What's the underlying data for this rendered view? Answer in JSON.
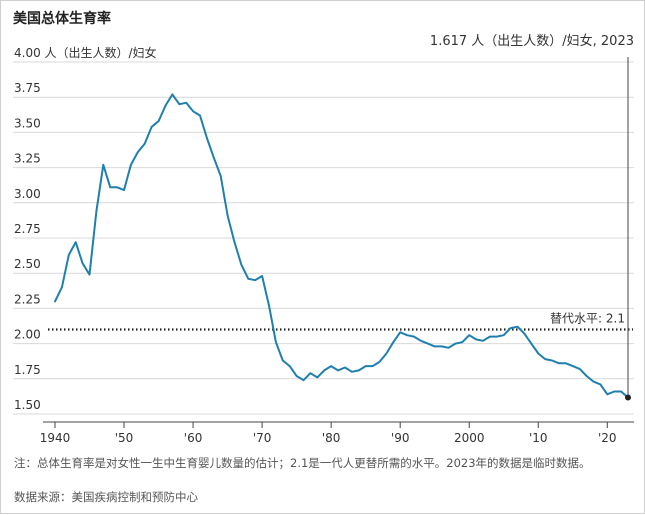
{
  "title": "美国总体生育率",
  "note": "注：总体生育率是对女性一生中生育婴儿数量的估计；2.1是一代人更替所需的水平。2023年的数据是临时数据。",
  "source": "数据来源：美国疾病控制和预防中心",
  "colors": {
    "line": "#1f7fae",
    "text": "#333333",
    "axis": "#444444",
    "grid": "#d9d9d9"
  },
  "chart_data": {
    "type": "line",
    "xlim": [
      1940,
      2023
    ],
    "ylim": [
      1.5,
      4.0
    ],
    "yticks": [
      1.5,
      1.75,
      2.0,
      2.25,
      2.5,
      2.75,
      3.0,
      3.25,
      3.5,
      3.75,
      4.0
    ],
    "ytick_labels": [
      "1.50",
      "1.75",
      "2.00",
      "2.25",
      "2.50",
      "2.75",
      "3.00",
      "3.25",
      "3.50",
      "3.75",
      "4.00 人（出生人数）/妇女"
    ],
    "xticks": [
      1940,
      1950,
      1960,
      1970,
      1980,
      1990,
      2000,
      2010,
      2020
    ],
    "xtick_labels": [
      "1940",
      "'50",
      "'60",
      "'70",
      "'80",
      "'90",
      "2000",
      "'10",
      "'20"
    ],
    "reference": {
      "value": 2.1,
      "label": "替代水平: 2.1"
    },
    "annotation": {
      "x": 2023,
      "y": 1.617,
      "label": "1.617 人（出生人数）/妇女, 2023"
    },
    "x": [
      1940,
      1941,
      1942,
      1943,
      1944,
      1945,
      1946,
      1947,
      1948,
      1949,
      1950,
      1951,
      1952,
      1953,
      1954,
      1955,
      1956,
      1957,
      1958,
      1959,
      1960,
      1961,
      1962,
      1963,
      1964,
      1965,
      1966,
      1967,
      1968,
      1969,
      1970,
      1971,
      1972,
      1973,
      1974,
      1975,
      1976,
      1977,
      1978,
      1979,
      1980,
      1981,
      1982,
      1983,
      1984,
      1985,
      1986,
      1987,
      1988,
      1989,
      1990,
      1991,
      1992,
      1993,
      1994,
      1995,
      1996,
      1997,
      1998,
      1999,
      2000,
      2001,
      2002,
      2003,
      2004,
      2005,
      2006,
      2007,
      2008,
      2009,
      2010,
      2011,
      2012,
      2013,
      2014,
      2015,
      2016,
      2017,
      2018,
      2019,
      2020,
      2021,
      2022,
      2023
    ],
    "y": [
      2.3,
      2.4,
      2.63,
      2.72,
      2.57,
      2.49,
      2.94,
      3.27,
      3.11,
      3.11,
      3.09,
      3.27,
      3.36,
      3.42,
      3.54,
      3.58,
      3.69,
      3.77,
      3.7,
      3.71,
      3.65,
      3.62,
      3.46,
      3.32,
      3.19,
      2.91,
      2.72,
      2.56,
      2.46,
      2.45,
      2.48,
      2.27,
      2.01,
      1.88,
      1.84,
      1.77,
      1.74,
      1.79,
      1.76,
      1.81,
      1.84,
      1.81,
      1.83,
      1.8,
      1.81,
      1.84,
      1.84,
      1.87,
      1.93,
      2.01,
      2.08,
      2.06,
      2.05,
      2.02,
      2.0,
      1.98,
      1.98,
      1.97,
      2.0,
      2.01,
      2.06,
      2.03,
      2.02,
      2.05,
      2.05,
      2.06,
      2.11,
      2.12,
      2.07,
      2.0,
      1.93,
      1.89,
      1.88,
      1.86,
      1.86,
      1.84,
      1.82,
      1.77,
      1.73,
      1.71,
      1.64,
      1.66,
      1.66,
      1.617
    ]
  }
}
